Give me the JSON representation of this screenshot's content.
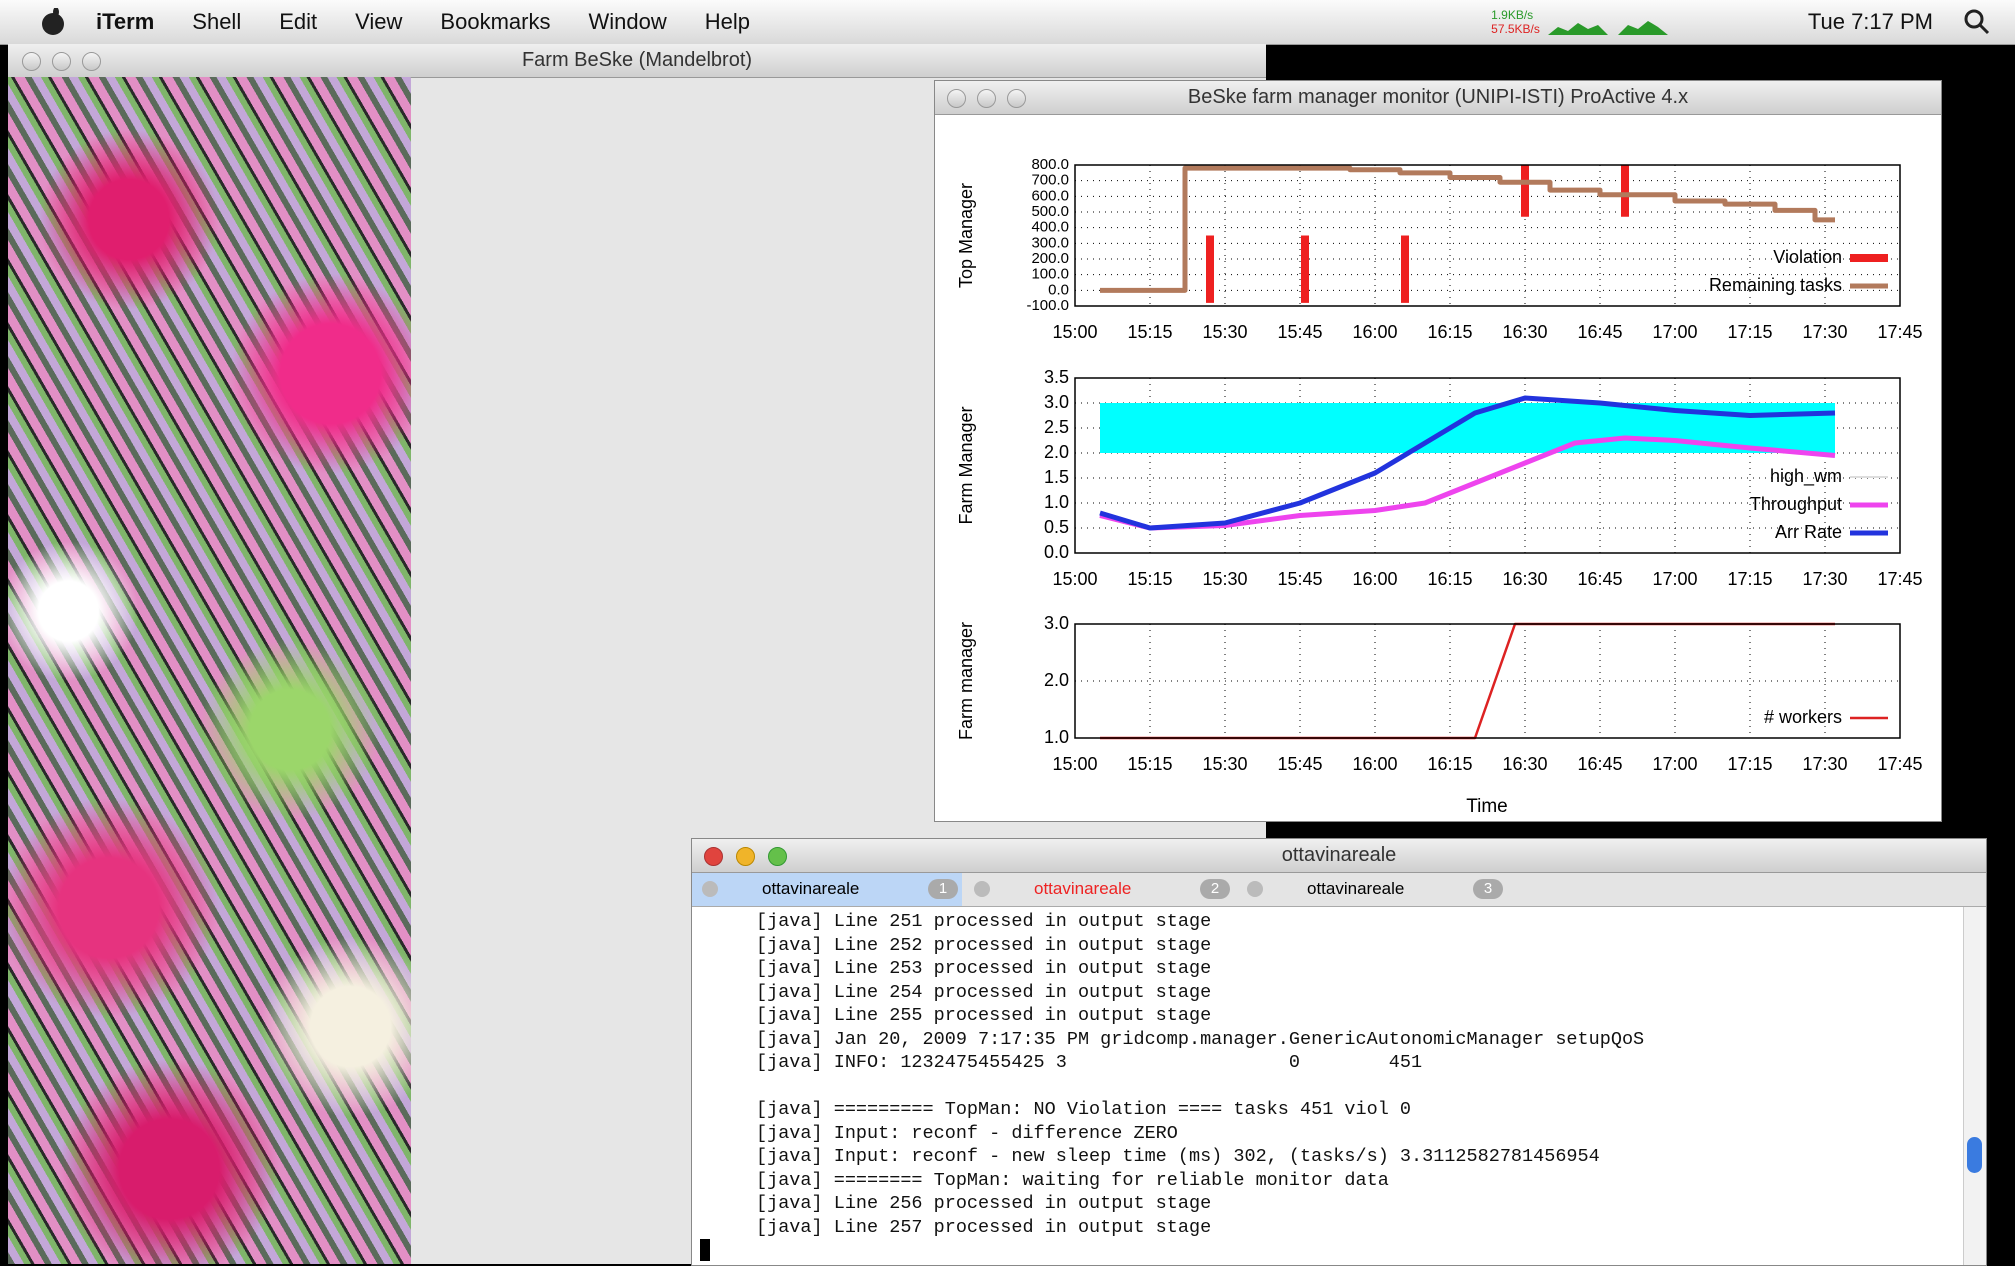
{
  "menubar": {
    "app": "iTerm",
    "menus": [
      "Shell",
      "Edit",
      "View",
      "Bookmarks",
      "Window",
      "Help"
    ],
    "upload": "1.9KB/s",
    "download": "57.5KB/s",
    "clock": "Tue 7:17 PM"
  },
  "fractal_window": {
    "title": "Farm BeSke (Mandelbrot)"
  },
  "monitor_window": {
    "title": "BeSke farm manager monitor (UNIPI-ISTI) ProActive 4.x",
    "x_label": "Time",
    "charts": [
      {
        "type": "line",
        "y_label": "Top Manager",
        "grid": true,
        "legend": "lower right",
        "xlim": [
          "15:00",
          "17:45"
        ],
        "xticks": [
          "15:00",
          "15:15",
          "15:30",
          "15:45",
          "16:00",
          "16:15",
          "16:30",
          "16:45",
          "17:00",
          "17:15",
          "17:30",
          "17:45"
        ],
        "ylim": [
          -100,
          800
        ],
        "yticks": [
          {
            "value": -100,
            "label": "-100.0"
          },
          {
            "value": 0,
            "label": "0.0"
          },
          {
            "value": 100,
            "label": "100.0"
          },
          {
            "value": 200,
            "label": "200.0"
          },
          {
            "value": 300,
            "label": "300.0"
          },
          {
            "value": 400,
            "label": "400.0"
          },
          {
            "value": 500,
            "label": "500.0"
          },
          {
            "value": 600,
            "label": "600.0"
          },
          {
            "value": 700,
            "label": "700.0"
          },
          {
            "value": 800,
            "label": "800.0"
          }
        ],
        "series": [
          {
            "name": "Violation",
            "style": "spikes",
            "color": "#ee2020",
            "x": [
              "15:27",
              "15:46",
              "16:06",
              "16:30",
              "16:50"
            ],
            "low": [
              -80,
              -80,
              -80,
              470,
              470
            ],
            "high": [
              350,
              350,
              350,
              800,
              800
            ]
          },
          {
            "name": "Remaining tasks",
            "style": "line",
            "color": "#b27a5c",
            "x": [
              "15:05",
              "15:22",
              "15:22",
              "15:55",
              "15:55",
              "16:05",
              "16:05",
              "16:15",
              "16:15",
              "16:25",
              "16:25",
              "16:35",
              "16:35",
              "16:45",
              "16:45",
              "17:00",
              "17:00",
              "17:10",
              "17:10",
              "17:20",
              "17:20",
              "17:28",
              "17:28",
              "17:32"
            ],
            "values": [
              0,
              0,
              780,
              780,
              770,
              770,
              750,
              750,
              720,
              720,
              690,
              690,
              640,
              640,
              610,
              610,
              570,
              570,
              550,
              550,
              510,
              510,
              450,
              450
            ]
          }
        ]
      },
      {
        "type": "line",
        "y_label": "Farm Manager",
        "grid": true,
        "legend": "lower right",
        "xlim": [
          "15:00",
          "17:45"
        ],
        "xticks": [
          "15:00",
          "15:15",
          "15:30",
          "15:45",
          "16:00",
          "16:15",
          "16:30",
          "16:45",
          "17:00",
          "17:15",
          "17:30",
          "17:45"
        ],
        "ylim": [
          0,
          3.5
        ],
        "yticks": [
          {
            "value": 0,
            "label": "0.0"
          },
          {
            "value": 0.5,
            "label": "0.5"
          },
          {
            "value": 1,
            "label": "1.0"
          },
          {
            "value": 1.5,
            "label": "1.5"
          },
          {
            "value": 2,
            "label": "2.0"
          },
          {
            "value": 2.5,
            "label": "2.5"
          },
          {
            "value": 3,
            "label": "3.0"
          },
          {
            "value": 3.5,
            "label": "3.5"
          }
        ],
        "series": [
          {
            "name": "high_wm",
            "style": "band",
            "color": "#00ffff",
            "line_color": "#dddddd",
            "x": [
              "15:05",
              "17:32"
            ],
            "low": [
              2,
              2
            ],
            "high": [
              3,
              3
            ]
          },
          {
            "name": "Throughput",
            "style": "line",
            "color": "#ee44ee",
            "x": [
              "15:05",
              "15:15",
              "15:30",
              "15:45",
              "16:00",
              "16:10",
              "16:20",
              "16:30",
              "16:40",
              "16:50",
              "17:00",
              "17:15",
              "17:32"
            ],
            "values": [
              0.75,
              0.5,
              0.55,
              0.75,
              0.85,
              1.0,
              1.4,
              1.8,
              2.2,
              2.3,
              2.25,
              2.1,
              1.95
            ]
          },
          {
            "name": "Arr Rate",
            "style": "line",
            "color": "#2233dd",
            "x": [
              "15:05",
              "15:15",
              "15:30",
              "15:45",
              "16:00",
              "16:10",
              "16:20",
              "16:30",
              "16:45",
              "17:00",
              "17:15",
              "17:32"
            ],
            "values": [
              0.8,
              0.5,
              0.6,
              1.0,
              1.6,
              2.2,
              2.8,
              3.1,
              3.0,
              2.85,
              2.75,
              2.8
            ]
          }
        ]
      },
      {
        "type": "line",
        "y_label": "Farm manager",
        "grid": true,
        "legend": "lower right",
        "xlim": [
          "15:00",
          "17:45"
        ],
        "xticks": [
          "15:00",
          "15:15",
          "15:30",
          "15:45",
          "16:00",
          "16:15",
          "16:30",
          "16:45",
          "17:00",
          "17:15",
          "17:30",
          "17:45"
        ],
        "ylim": [
          1,
          3
        ],
        "yticks": [
          {
            "value": 1,
            "label": "1.0"
          },
          {
            "value": 2,
            "label": "2.0"
          },
          {
            "value": 3,
            "label": "3.0"
          }
        ],
        "series": [
          {
            "name": "# workers",
            "style": "thin",
            "color": "#dd2222",
            "x": [
              "15:05",
              "16:20",
              "16:28",
              "17:32"
            ],
            "values": [
              1,
              1,
              3,
              3
            ]
          }
        ]
      }
    ]
  },
  "terminal": {
    "title": "ottavinareale",
    "tabs": [
      {
        "label": "ottavinareale",
        "number": 1
      },
      {
        "label": "ottavinareale",
        "number": 2
      },
      {
        "label": "ottavinareale",
        "number": 3
      }
    ],
    "blocks": [
      [
        "[java] Line 251 processed in output stage",
        "[java] Line 252 processed in output stage",
        "[java] Line 253 processed in output stage",
        "[java] Line 254 processed in output stage",
        "[java] Line 255 processed in output stage",
        "[java] Jan 20, 2009 7:17:35 PM gridcomp.manager.GenericAutonomicManager setupQoS",
        "[java] INFO: 1232475455425 3                    0        451"
      ],
      [
        "[java] ========= TopMan: NO Violation ==== tasks 451 viol 0",
        "[java] Input: reconf - difference ZERO",
        "[java] Input: reconf - new sleep time (ms) 302, (tasks/s) 3.3112582781456954",
        "[java] ======== TopMan: waiting for reliable monitor data",
        "[java] Line 256 processed in output stage",
        "[java] Line 257 processed in output stage"
      ]
    ]
  }
}
